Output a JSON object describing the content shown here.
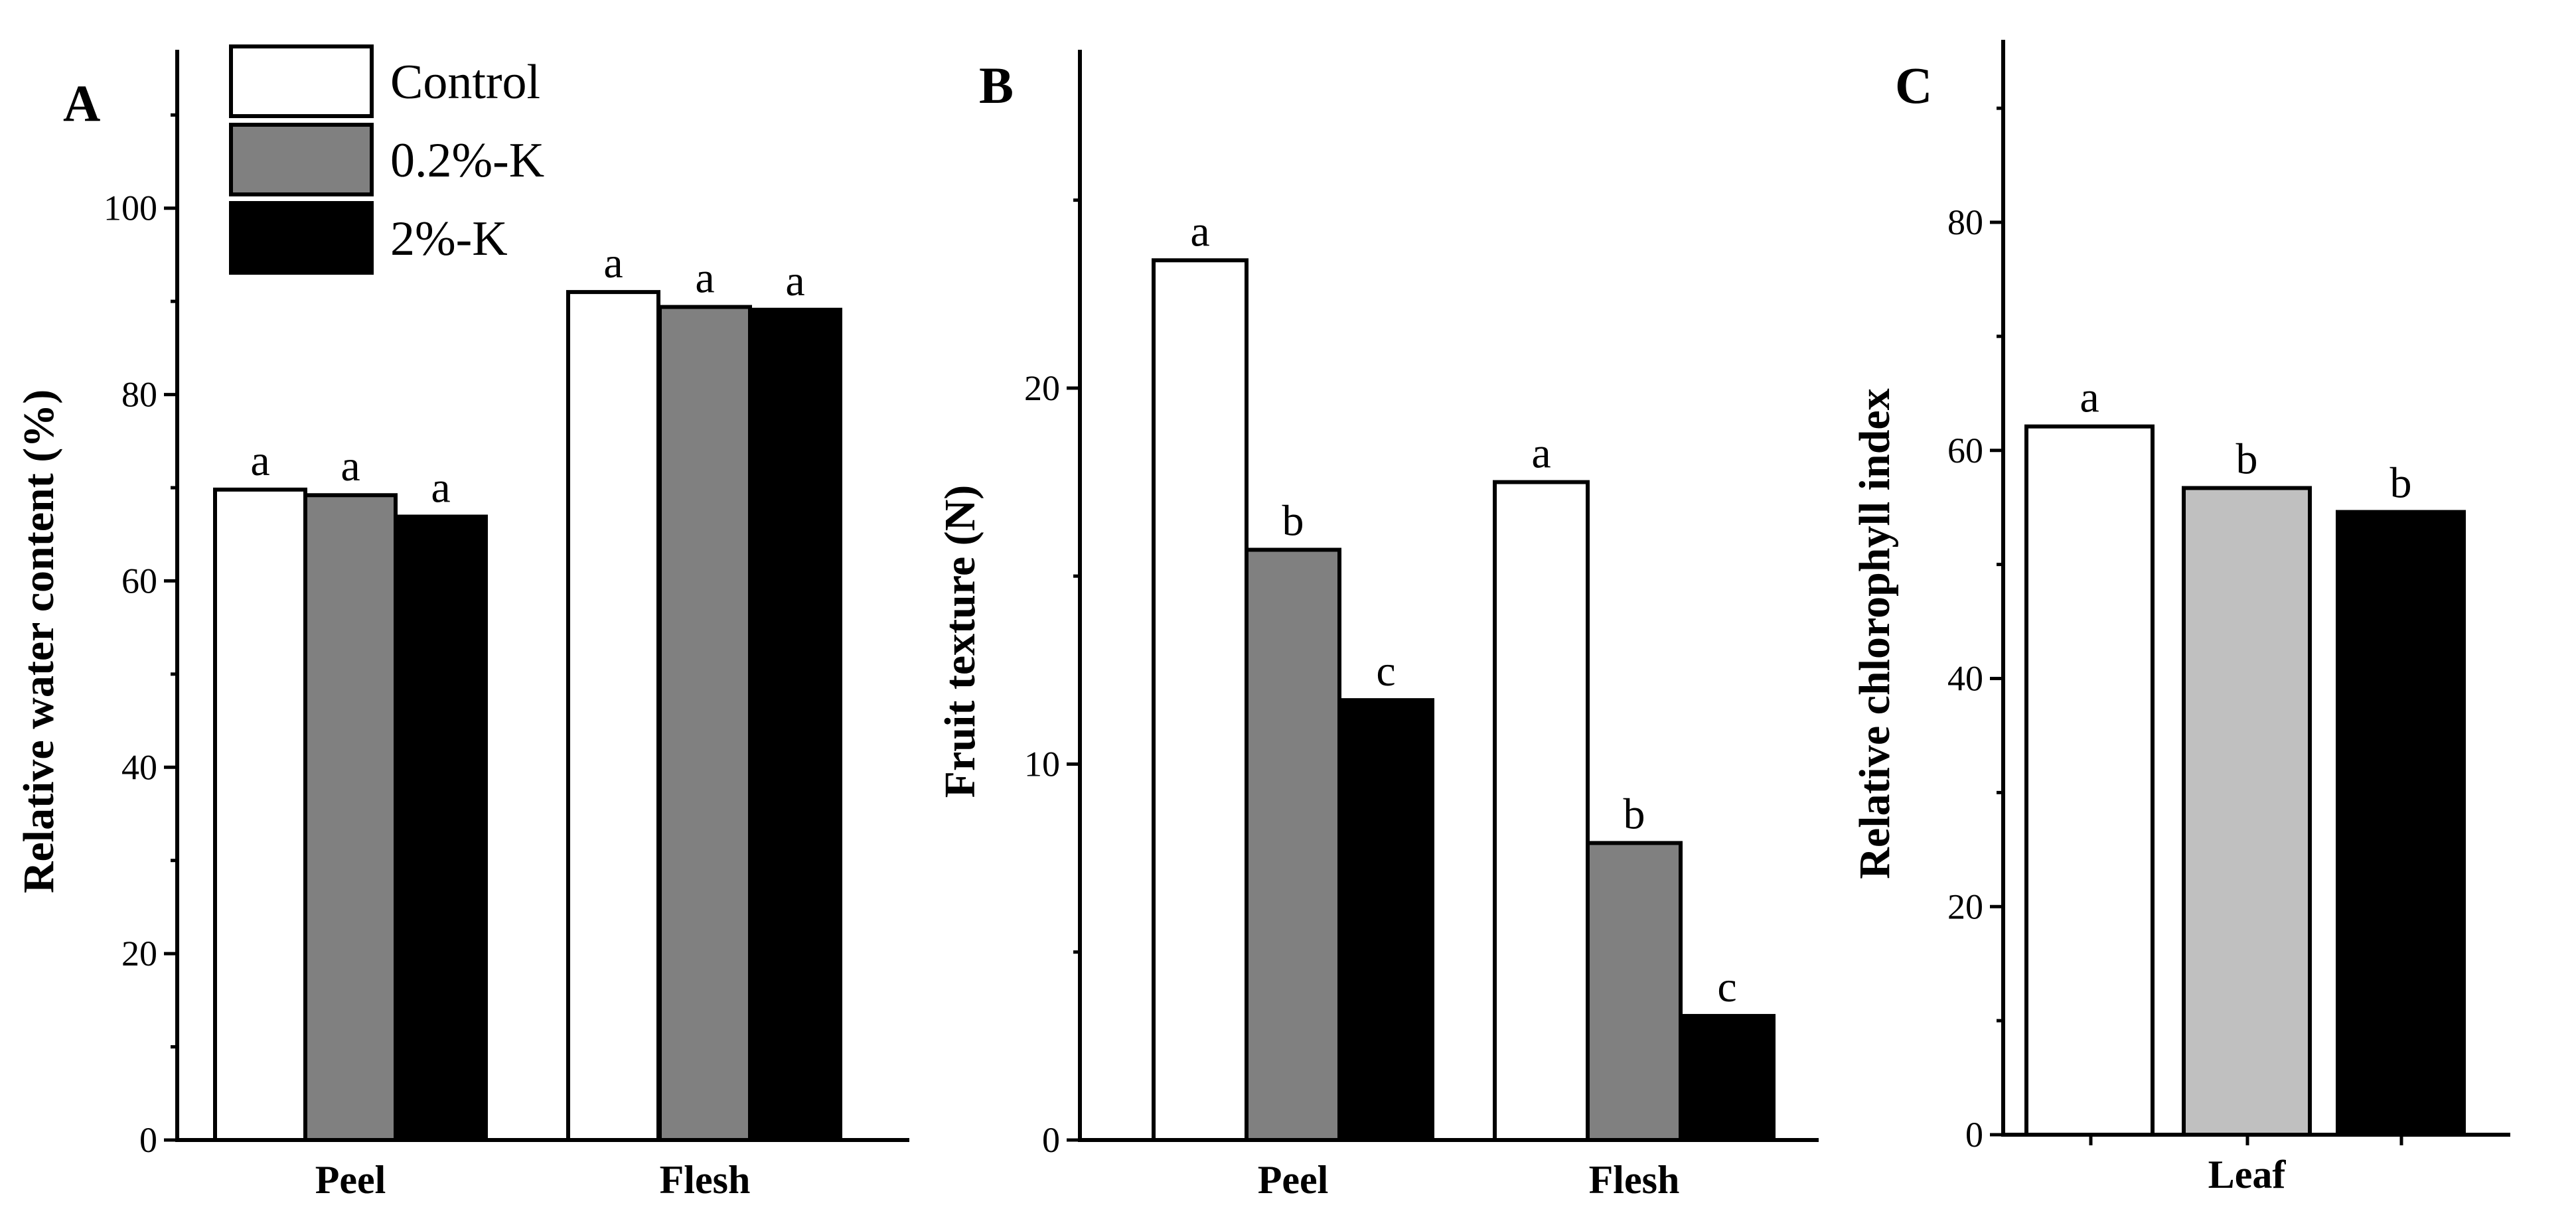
{
  "legend": {
    "entries": [
      {
        "name": "Control",
        "color": "#ffffff"
      },
      {
        "name": "0.2%-K",
        "color": "#808080"
      },
      {
        "name": "2%-K",
        "color": "#000000"
      }
    ]
  },
  "chart_data": [
    {
      "panel": "A",
      "type": "bar",
      "ylabel": "Relative water content (%)",
      "ylim": [
        0,
        117
      ],
      "yticks": [
        0,
        20,
        40,
        60,
        80,
        100
      ],
      "minor_step": 10,
      "categories": [
        "Peel",
        "Flesh"
      ],
      "series": [
        {
          "name": "Control",
          "color": "#ffffff",
          "values": [
            69.8,
            91.0
          ],
          "labels": [
            "a",
            "a"
          ]
        },
        {
          "name": "0.2%-K",
          "color": "#808080",
          "values": [
            69.2,
            89.4
          ],
          "labels": [
            "a",
            "a"
          ]
        },
        {
          "name": "2%-K",
          "color": "#000000",
          "values": [
            66.9,
            89.1
          ],
          "labels": [
            "a",
            "a"
          ]
        }
      ]
    },
    {
      "panel": "B",
      "type": "bar",
      "ylabel": "Fruit texture (N)",
      "ylim": [
        0,
        29
      ],
      "yticks": [
        0,
        10,
        20
      ],
      "minor_step": 5,
      "categories": [
        "Peel",
        "Flesh"
      ],
      "series": [
        {
          "name": "Control",
          "color": "#ffffff",
          "values": [
            23.4,
            17.5
          ],
          "labels": [
            "a",
            "a"
          ]
        },
        {
          "name": "0.2%-K",
          "color": "#808080",
          "values": [
            15.7,
            7.9
          ],
          "labels": [
            "b",
            "b"
          ]
        },
        {
          "name": "2%-K",
          "color": "#000000",
          "values": [
            11.7,
            3.3
          ],
          "labels": [
            "c",
            "c"
          ]
        }
      ]
    },
    {
      "panel": "C",
      "type": "bar",
      "ylabel": "Relative chlorophyll index",
      "ylim": [
        0,
        96
      ],
      "yticks": [
        0,
        20,
        40,
        60,
        80
      ],
      "minor_step": 10,
      "categories": [
        "Leaf"
      ],
      "series": [
        {
          "name": "Control",
          "color": "#ffffff",
          "values": [
            62.1
          ],
          "labels": [
            "a"
          ]
        },
        {
          "name": "0.2%-K",
          "color": "#c0c0c0",
          "values": [
            56.7
          ],
          "labels": [
            "b"
          ]
        },
        {
          "name": "2%-K",
          "color": "#000000",
          "values": [
            54.6
          ],
          "labels": [
            "b"
          ]
        }
      ]
    }
  ]
}
